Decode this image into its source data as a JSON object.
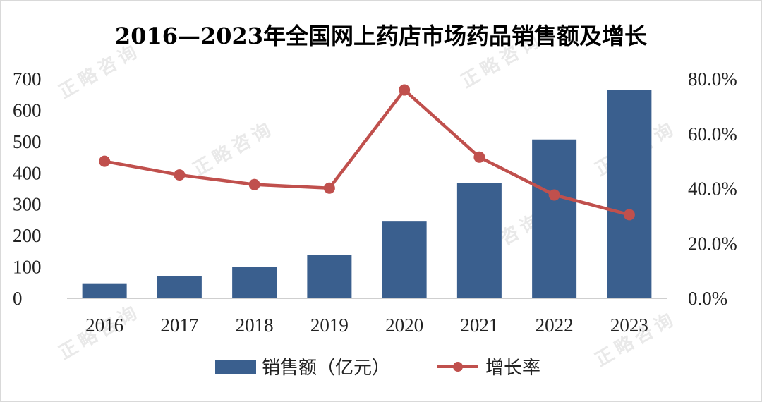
{
  "watermark": "正略咨询",
  "chart_data": {
    "type": "bar",
    "title": "2016—2023年全国网上药店市场药品销售额及增长",
    "categories": [
      "2016",
      "2017",
      "2018",
      "2019",
      "2020",
      "2021",
      "2022",
      "2023"
    ],
    "series": [
      {
        "name": "销售额（亿元）",
        "type": "bar",
        "axis": "left",
        "color": "#3a5f8e",
        "values": [
          48,
          71,
          101,
          139,
          245,
          369,
          507,
          665
        ]
      },
      {
        "name": "增长率",
        "type": "line",
        "axis": "right",
        "color": "#c0504d",
        "values": [
          50.0,
          45.0,
          41.5,
          40.2,
          76.0,
          51.5,
          37.7,
          30.5
        ]
      }
    ],
    "y_left": {
      "ylim": [
        0,
        700
      ],
      "ticks": [
        "0",
        "100",
        "200",
        "300",
        "400",
        "500",
        "600",
        "700"
      ]
    },
    "y_right": {
      "ylim": [
        0,
        80
      ],
      "ticks": [
        "0.0%",
        "20.0%",
        "40.0%",
        "60.0%",
        "80.0%"
      ]
    },
    "legend": "bottom",
    "grid": false
  }
}
